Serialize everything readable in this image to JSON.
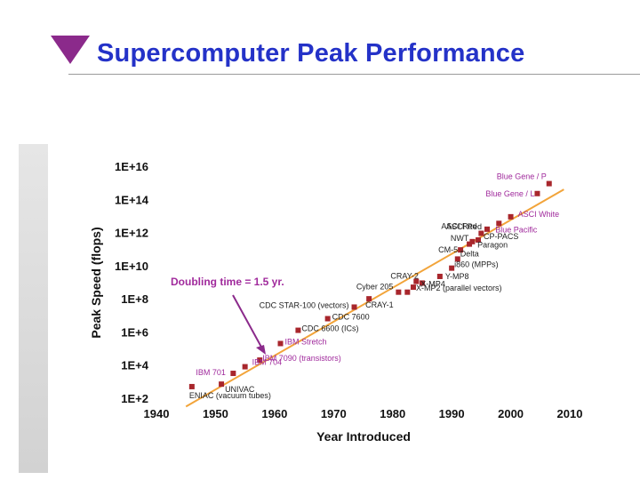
{
  "slide": {
    "title": "Supercomputer Peak Performance",
    "title_color": "#2432c8",
    "marker_color": "#8b2a8b"
  },
  "chart_data": {
    "type": "scatter",
    "title": "",
    "xlabel": "Year Introduced",
    "ylabel": "Peak Speed (flops)",
    "xlim": [
      1940,
      2010
    ],
    "ylim_log10": [
      2,
      16
    ],
    "x_ticks": [
      "1940",
      "1950",
      "1960",
      "1970",
      "1980",
      "1990",
      "2000",
      "2010"
    ],
    "y_ticks": [
      "1E+2",
      "1E+4",
      "1E+6",
      "1E+8",
      "1E+10",
      "1E+12",
      "1E+14",
      "1E+16"
    ],
    "trend_line": {
      "color": "#f2a43a",
      "from": [
        1945,
        1.5
      ],
      "to": [
        2009,
        14.6
      ]
    },
    "annotation": {
      "text": "Doubling time = 1.5 yr.",
      "color": "#a02a9c",
      "points_to": [
        1957.5,
        3.8
      ]
    },
    "series": [
      {
        "name": "ENIAC (vacuum tubes)",
        "x": 1946,
        "log10": 2.7,
        "label_color": "#222222"
      },
      {
        "name": "UNIVAC",
        "x": 1951,
        "log10": 2.85,
        "label_color": "#222222"
      },
      {
        "name": "IBM 701",
        "x": 1953,
        "log10": 3.5,
        "label_color": "#a02a9c"
      },
      {
        "name": "IBM 704",
        "x": 1955,
        "log10": 3.9,
        "label_color": "#a02a9c"
      },
      {
        "name": "IBM 7090 (transistors)",
        "x": 1957.5,
        "log10": 4.3,
        "label_color": "#a02a9c"
      },
      {
        "name": "IBM Stretch",
        "x": 1961,
        "log10": 5.3,
        "label_color": "#a02a9c"
      },
      {
        "name": "CDC 6600 (ICs)",
        "x": 1964,
        "log10": 6.1,
        "label_color": "#222222"
      },
      {
        "name": "CDC 7600",
        "x": 1969,
        "log10": 6.8,
        "label_color": "#222222"
      },
      {
        "name": "CDC STAR-100 (vectors)",
        "x": 1973.5,
        "log10": 7.5,
        "label_color": "#222222"
      },
      {
        "name": "CRAY-1",
        "x": 1976,
        "log10": 8.0,
        "label_color": "#222222"
      },
      {
        "name": "Cyber 205",
        "x": 1981,
        "log10": 8.4,
        "label_color": "#222222"
      },
      {
        "name": "",
        "x": 1982.5,
        "log10": 8.4,
        "label_color": "#222222"
      },
      {
        "name": "X-MP2 (parallel vectors)",
        "x": 1983.5,
        "log10": 8.7,
        "label_color": "#222222"
      },
      {
        "name": "CRAY-2",
        "x": 1985,
        "log10": 8.95,
        "label_color": "#222222"
      },
      {
        "name": "X-MP4",
        "x": 1984,
        "log10": 9.05,
        "label_color": "#222222"
      },
      {
        "name": "Y-MP8",
        "x": 1988,
        "log10": 9.35,
        "label_color": "#222222"
      },
      {
        "name": "i860 (MPPs)",
        "x": 1990,
        "log10": 9.85,
        "label_color": "#222222"
      },
      {
        "name": "Delta",
        "x": 1991,
        "log10": 10.4,
        "label_color": "#222222"
      },
      {
        "name": "CM-5",
        "x": 1991.5,
        "log10": 10.95,
        "label_color": "#222222"
      },
      {
        "name": "Paragon",
        "x": 1993,
        "log10": 11.3,
        "label_color": "#222222"
      },
      {
        "name": "NWT",
        "x": 1993.5,
        "log10": 11.45,
        "label_color": "#222222"
      },
      {
        "name": "CP-PACS",
        "x": 1994.5,
        "log10": 11.55,
        "label_color": "#222222"
      },
      {
        "name": "ASCI Red",
        "x": 1995,
        "log10": 11.95,
        "label_color": "#222222"
      },
      {
        "name": "ASCI Red",
        "x": 1996,
        "log10": 12.2,
        "label_color": "#222222"
      },
      {
        "name": "Blue Pacific",
        "x": 1998,
        "log10": 12.55,
        "label_color": "#a02a9c"
      },
      {
        "name": "ASCI White",
        "x": 2000,
        "log10": 12.95,
        "label_color": "#a02a9c"
      },
      {
        "name": "Blue Gene / L",
        "x": 2004.5,
        "log10": 14.35,
        "label_color": "#a02a9c"
      },
      {
        "name": "Blue Gene / P",
        "x": 2006.5,
        "log10": 14.95,
        "label_color": "#a02a9c"
      }
    ]
  }
}
